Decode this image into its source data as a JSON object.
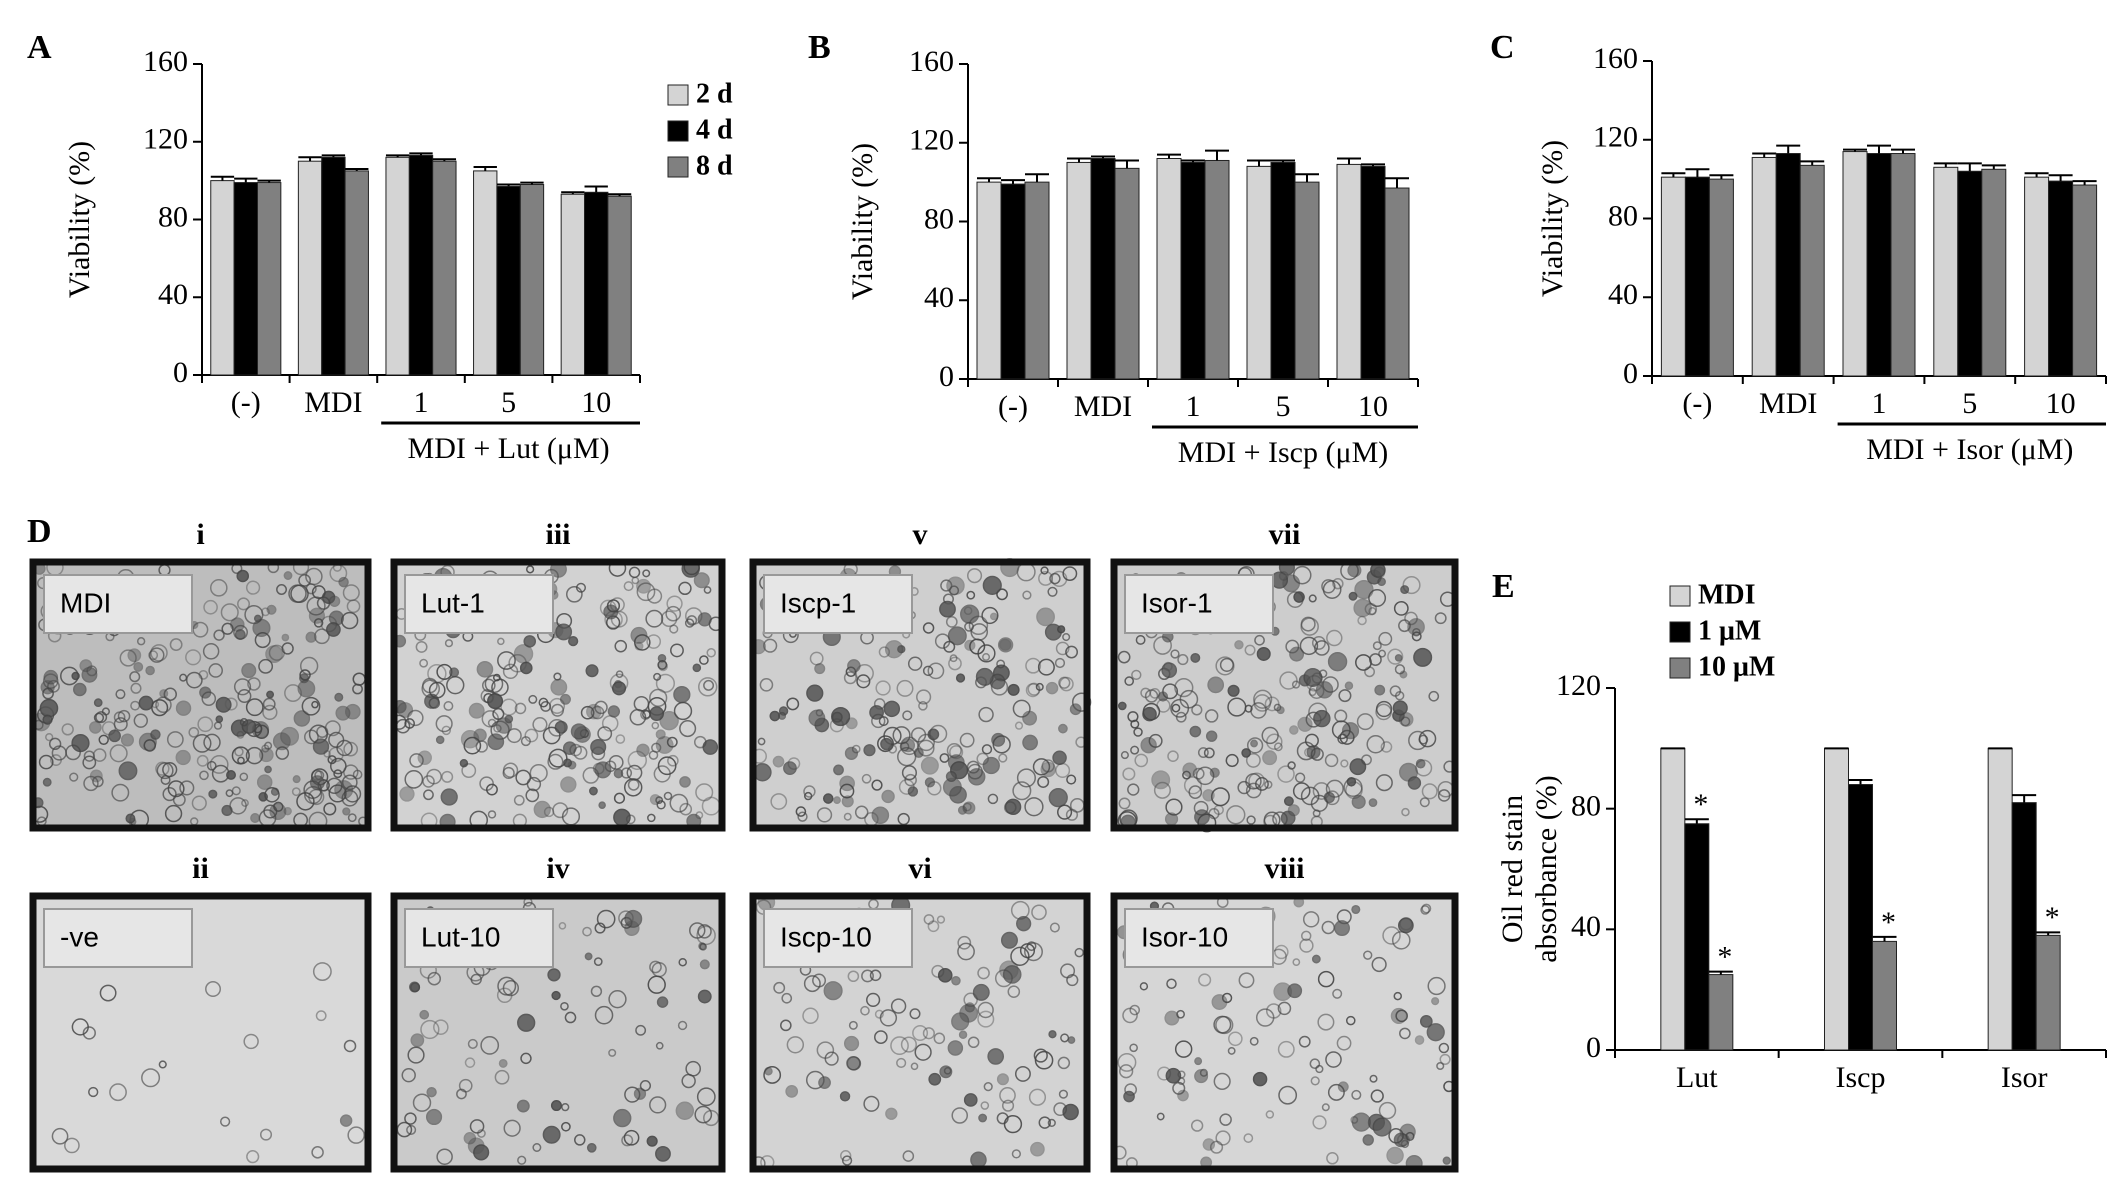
{
  "chart_data": [
    {
      "type": "bar",
      "panel": "A",
      "ylabel": "Viability (%)",
      "categories": [
        "(-)",
        "MDI",
        "1",
        "5",
        "10"
      ],
      "group_label": "MDI + Lut (μM)",
      "series": [
        {
          "name": "2 d",
          "color": "#d4d4d4",
          "values": [
            100,
            110,
            112,
            105,
            93
          ],
          "errors": [
            2,
            2,
            1,
            2,
            1
          ]
        },
        {
          "name": "4 d",
          "color": "#000000",
          "values": [
            99,
            112,
            113,
            97,
            94
          ],
          "errors": [
            2,
            1,
            1,
            1,
            3
          ]
        },
        {
          "name": "8 d",
          "color": "#808080",
          "values": [
            99,
            105,
            110,
            98,
            92
          ],
          "errors": [
            1,
            1,
            1,
            1,
            1
          ]
        }
      ],
      "ylim": [
        0,
        160
      ],
      "yticks": [
        0,
        40,
        80,
        120,
        160
      ]
    },
    {
      "type": "bar",
      "panel": "B",
      "ylabel": "Viability (%)",
      "categories": [
        "(-)",
        "MDI",
        "1",
        "5",
        "10"
      ],
      "group_label": "MDI + Iscp (μM)",
      "series": [
        {
          "color": "#d4d4d4",
          "values": [
            100,
            110,
            112,
            108,
            109
          ],
          "errors": [
            2,
            2,
            2,
            3,
            3
          ]
        },
        {
          "color": "#000000",
          "values": [
            99,
            112,
            110,
            110,
            108
          ],
          "errors": [
            2,
            1,
            1,
            1,
            1
          ]
        },
        {
          "color": "#808080",
          "values": [
            100,
            107,
            111,
            100,
            97
          ],
          "errors": [
            4,
            4,
            5,
            4,
            5
          ]
        }
      ],
      "ylim": [
        0,
        160
      ],
      "yticks": [
        0,
        40,
        80,
        120,
        160
      ]
    },
    {
      "type": "bar",
      "panel": "C",
      "ylabel": "Viability (%)",
      "categories": [
        "(-)",
        "MDI",
        "1",
        "5",
        "10"
      ],
      "group_label": "MDI + Isor (μM)",
      "series": [
        {
          "color": "#d4d4d4",
          "values": [
            101,
            111,
            114,
            106,
            101
          ],
          "errors": [
            2,
            2,
            1,
            2,
            2
          ]
        },
        {
          "color": "#000000",
          "values": [
            101,
            113,
            113,
            104,
            99
          ],
          "errors": [
            4,
            4,
            4,
            4,
            3
          ]
        },
        {
          "color": "#808080",
          "values": [
            100,
            107,
            113,
            105,
            97
          ],
          "errors": [
            2,
            2,
            2,
            2,
            2
          ]
        }
      ],
      "ylim": [
        0,
        160
      ],
      "yticks": [
        0,
        40,
        80,
        120,
        160
      ]
    },
    {
      "type": "bar",
      "panel": "E",
      "ylabel": [
        "Oil red stain",
        "absorbance (%)"
      ],
      "categories": [
        "Lut",
        "Iscp",
        "Isor"
      ],
      "series": [
        {
          "name": "MDI",
          "color": "#d4d4d4",
          "values": [
            100,
            100,
            100
          ],
          "errors": [
            0,
            0,
            0
          ],
          "significance": [
            null,
            null,
            null
          ]
        },
        {
          "name": "1 μM",
          "color": "#000000",
          "values": [
            75,
            88,
            82
          ],
          "errors": [
            1.5,
            1.5,
            2.5
          ],
          "significance": [
            "*",
            null,
            null
          ]
        },
        {
          "name": "10 μM",
          "color": "#808080",
          "values": [
            25,
            36,
            38
          ],
          "errors": [
            1,
            1.5,
            1
          ],
          "significance": [
            "*",
            "*",
            "*"
          ]
        }
      ],
      "ylim": [
        0,
        120
      ],
      "yticks": [
        0,
        40,
        80,
        120
      ]
    }
  ],
  "micrographs": {
    "panel": "D",
    "images": [
      {
        "numeral": "i",
        "label": "MDI"
      },
      {
        "numeral": "iii",
        "label": "Lut-1"
      },
      {
        "numeral": "v",
        "label": "Iscp-1"
      },
      {
        "numeral": "vii",
        "label": "Isor-1"
      },
      {
        "numeral": "ii",
        "label": "-ve"
      },
      {
        "numeral": "iv",
        "label": "Lut-10"
      },
      {
        "numeral": "vi",
        "label": "Iscp-10"
      },
      {
        "numeral": "viii",
        "label": "Isor-10"
      }
    ]
  }
}
